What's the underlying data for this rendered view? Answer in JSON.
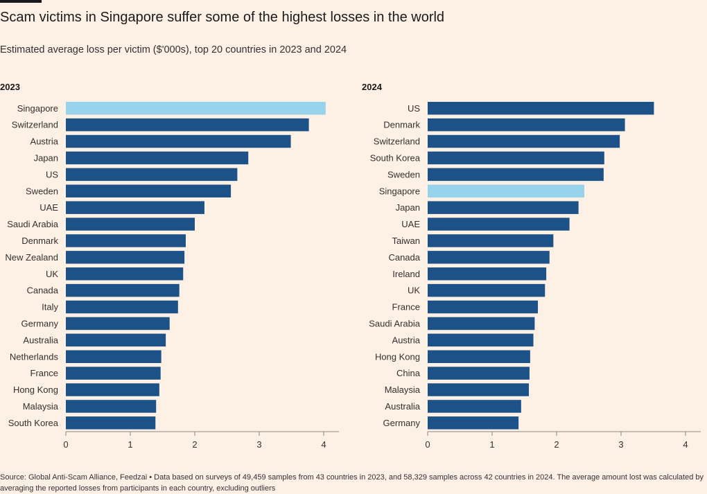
{
  "header": {
    "title": "Scam victims in Singapore suffer some of the highest losses in the world",
    "subtitle": "Estimated average loss per victim ($'000s), top 20 countries in 2023 and 2024"
  },
  "footer": {
    "source": "Source: Global Anti-Scam Alliance, Feedzai • Data based on surveys of 49,459 samples from 43 countries in 2023, and 58,329 samples across 42 countries in 2024. The average amount lost was calculated by averaging the reported losses from participants in each country, excluding outliers"
  },
  "colors": {
    "bar": "#1d5289",
    "highlight": "#97d3ea",
    "axis": "#8a8580",
    "background": "#fdf1e6"
  },
  "chart_data": [
    {
      "type": "bar",
      "orientation": "horizontal",
      "title": "2023",
      "highlight_category": "Singapore",
      "xlim": [
        0,
        4.2
      ],
      "x_ticks": [
        0,
        1,
        2,
        3,
        4
      ],
      "categories": [
        "Singapore",
        "Switzerland",
        "Austria",
        "Japan",
        "US",
        "Sweden",
        "UAE",
        "Saudi Arabia",
        "Denmark",
        "New Zealand",
        "UK",
        "Canada",
        "Italy",
        "Germany",
        "Australia",
        "Netherlands",
        "France",
        "Hong Kong",
        "Malaysia",
        "South Korea"
      ],
      "values": [
        4.03,
        3.77,
        3.49,
        2.83,
        2.66,
        2.56,
        2.15,
        2.0,
        1.86,
        1.84,
        1.82,
        1.76,
        1.74,
        1.61,
        1.55,
        1.48,
        1.47,
        1.45,
        1.4,
        1.39
      ]
    },
    {
      "type": "bar",
      "orientation": "horizontal",
      "title": "2024",
      "highlight_category": "Singapore",
      "xlim": [
        0,
        4.2
      ],
      "x_ticks": [
        0,
        1,
        2,
        3,
        4
      ],
      "categories": [
        "US",
        "Denmark",
        "Switzerland",
        "South Korea",
        "Sweden",
        "Singapore",
        "Japan",
        "UAE",
        "Taiwan",
        "Canada",
        "Ireland",
        "UK",
        "France",
        "Saudi Arabia",
        "Austria",
        "Hong Kong",
        "China",
        "Malaysia",
        "Australia",
        "Germany"
      ],
      "values": [
        3.51,
        3.06,
        2.98,
        2.74,
        2.73,
        2.43,
        2.34,
        2.2,
        1.95,
        1.89,
        1.84,
        1.82,
        1.71,
        1.66,
        1.64,
        1.59,
        1.58,
        1.57,
        1.45,
        1.41
      ]
    }
  ]
}
